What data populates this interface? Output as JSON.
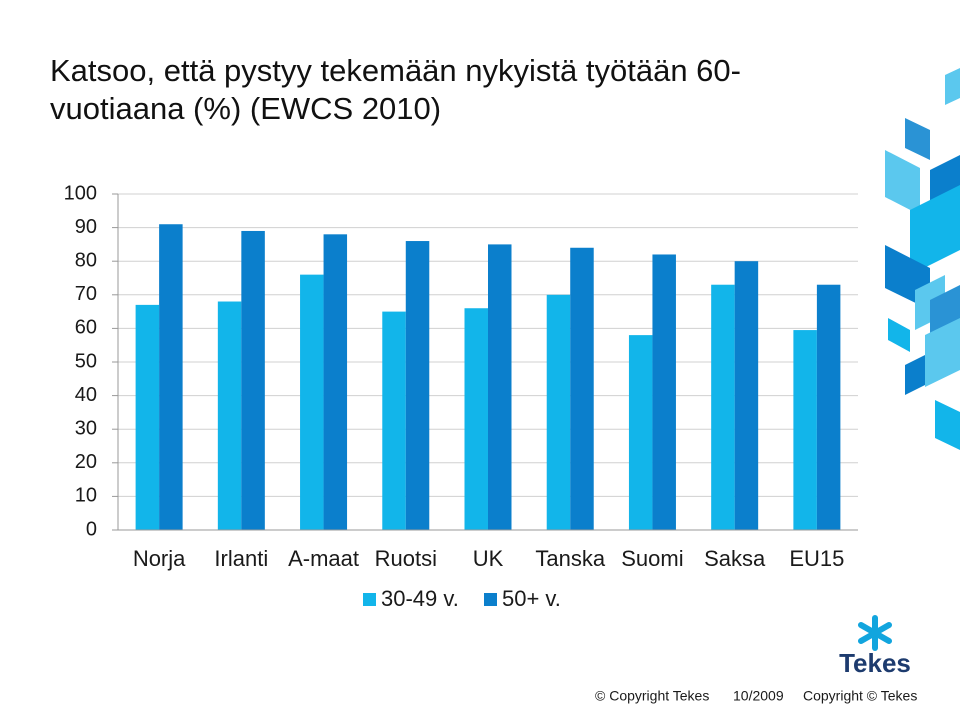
{
  "chart_data": {
    "type": "bar",
    "title": "Katsoo, että pystyy tekemään nykyistä työtään 60-vuotiaana (%) (EWCS 2010)",
    "categories": [
      "Norja",
      "Irlanti",
      "A-maat",
      "Ruotsi",
      "UK",
      "Tanska",
      "Suomi",
      "Saksa",
      "EU15"
    ],
    "series": [
      {
        "name": "30-49 v.",
        "color": "#12b5ea",
        "values": [
          67,
          68,
          76,
          65,
          66,
          70,
          58,
          73,
          59.5
        ]
      },
      {
        "name": "50+ v.",
        "color": "#0b7fcc",
        "values": [
          91,
          89,
          88,
          86,
          85,
          84,
          82,
          80,
          73
        ]
      }
    ],
    "ylim": [
      0,
      100
    ],
    "yticks": [
      0,
      10,
      20,
      30,
      40,
      50,
      60,
      70,
      80,
      90,
      100
    ],
    "grid": true,
    "legend": "bottom"
  },
  "slide": {
    "logo": "Tekes",
    "footer": [
      "© Copyright Tekes",
      "10/2009",
      "Copyright © Tekes"
    ]
  }
}
